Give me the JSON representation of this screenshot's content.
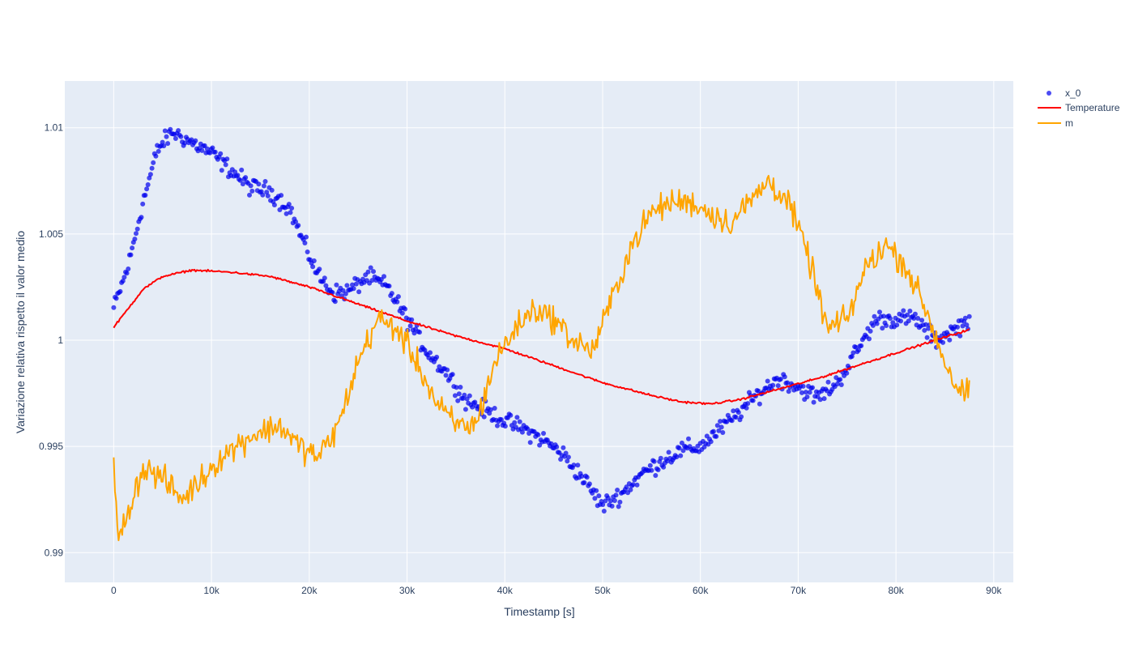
{
  "chart_data": {
    "type": "scatter",
    "title": "",
    "xlabel": "Timestamp [s]",
    "ylabel": "Variazione relativa rispetto il valor medio",
    "xlim": [
      -5000,
      92000
    ],
    "ylim": [
      0.9886,
      1.0122
    ],
    "x_ticks": [
      0,
      10000,
      20000,
      30000,
      40000,
      50000,
      60000,
      70000,
      80000,
      90000
    ],
    "x_tick_labels": [
      "0",
      "10k",
      "20k",
      "30k",
      "40k",
      "50k",
      "60k",
      "70k",
      "80k",
      "90k"
    ],
    "y_ticks": [
      0.99,
      0.995,
      1.0,
      1.005,
      1.01
    ],
    "y_tick_labels": [
      "0.99",
      "0.995",
      "1",
      "1.005",
      "1.01"
    ],
    "legend_position": "top-right",
    "x_range": [
      0,
      87500
    ],
    "series": [
      {
        "name": "x_0",
        "mode": "markers",
        "color": "#0000ee",
        "points_count": 650,
        "noise": 0.0007,
        "anchors": [
          [
            0,
            1.0015
          ],
          [
            1500,
            1.0035
          ],
          [
            3000,
            1.0065
          ],
          [
            4500,
            1.009
          ],
          [
            6000,
            1.0098
          ],
          [
            8000,
            1.0093
          ],
          [
            10000,
            1.0088
          ],
          [
            12000,
            1.008
          ],
          [
            14000,
            1.0072
          ],
          [
            16000,
            1.007
          ],
          [
            18000,
            1.0062
          ],
          [
            19500,
            1.0045
          ],
          [
            21000,
            1.003
          ],
          [
            22500,
            1.0022
          ],
          [
            24000,
            1.0023
          ],
          [
            26000,
            1.003
          ],
          [
            28000,
            1.0025
          ],
          [
            30000,
            1.001
          ],
          [
            32000,
            0.9995
          ],
          [
            34000,
            0.9985
          ],
          [
            36000,
            0.9972
          ],
          [
            38000,
            0.9967
          ],
          [
            40000,
            0.9962
          ],
          [
            42000,
            0.9958
          ],
          [
            44000,
            0.9953
          ],
          [
            46000,
            0.9946
          ],
          [
            48000,
            0.9935
          ],
          [
            50000,
            0.9922
          ],
          [
            52000,
            0.9928
          ],
          [
            54000,
            0.9937
          ],
          [
            56000,
            0.9943
          ],
          [
            58000,
            0.9948
          ],
          [
            60000,
            0.995
          ],
          [
            62000,
            0.9958
          ],
          [
            64000,
            0.9966
          ],
          [
            66000,
            0.9975
          ],
          [
            68000,
            0.9982
          ],
          [
            70000,
            0.9978
          ],
          [
            72000,
            0.9973
          ],
          [
            74000,
            0.998
          ],
          [
            76000,
            0.9995
          ],
          [
            78000,
            1.001
          ],
          [
            80000,
            1.001
          ],
          [
            82000,
            1.001
          ],
          [
            84000,
            1.0
          ],
          [
            86000,
            1.0005
          ],
          [
            87500,
            1.001
          ]
        ]
      },
      {
        "name": "Temperature",
        "mode": "lines",
        "color": "#ff0000",
        "points_count": 700,
        "noise": 8e-05,
        "anchors": [
          [
            0,
            1.0006
          ],
          [
            1500,
            1.0015
          ],
          [
            3000,
            1.0024
          ],
          [
            5000,
            1.003
          ],
          [
            8000,
            1.0033
          ],
          [
            12000,
            1.0032
          ],
          [
            16000,
            1.003
          ],
          [
            20000,
            1.0025
          ],
          [
            25000,
            1.0017
          ],
          [
            30000,
            1.0009
          ],
          [
            35000,
            1.0002
          ],
          [
            40000,
            0.9996
          ],
          [
            45000,
            0.9988
          ],
          [
            50000,
            0.998
          ],
          [
            55000,
            0.9974
          ],
          [
            58000,
            0.9971
          ],
          [
            61000,
            0.997
          ],
          [
            64000,
            0.9972
          ],
          [
            68000,
            0.9977
          ],
          [
            72000,
            0.9982
          ],
          [
            76000,
            0.9988
          ],
          [
            80000,
            0.9994
          ],
          [
            84000,
            1.0
          ],
          [
            87500,
            1.0005
          ]
        ]
      },
      {
        "name": "m",
        "mode": "lines",
        "color": "#ffa500",
        "points_count": 700,
        "noise": 0.0011,
        "anchors": [
          [
            0,
            0.994
          ],
          [
            500,
            0.9905
          ],
          [
            1500,
            0.992
          ],
          [
            3000,
            0.994
          ],
          [
            5000,
            0.9935
          ],
          [
            7000,
            0.9925
          ],
          [
            9000,
            0.9935
          ],
          [
            11000,
            0.9945
          ],
          [
            14000,
            0.9955
          ],
          [
            17000,
            0.996
          ],
          [
            19000,
            0.995
          ],
          [
            21000,
            0.9945
          ],
          [
            23000,
            0.996
          ],
          [
            25000,
            0.999
          ],
          [
            27000,
            1.001
          ],
          [
            29000,
            1.0005
          ],
          [
            31000,
            0.999
          ],
          [
            33000,
            0.997
          ],
          [
            35000,
            0.996
          ],
          [
            37000,
            0.996
          ],
          [
            39000,
            0.999
          ],
          [
            41000,
            1.0005
          ],
          [
            43000,
            1.0015
          ],
          [
            45000,
            1.001
          ],
          [
            47000,
            1.0
          ],
          [
            49000,
            0.9995
          ],
          [
            51000,
            1.002
          ],
          [
            53000,
            1.0045
          ],
          [
            55000,
            1.006
          ],
          [
            57000,
            1.0065
          ],
          [
            59000,
            1.0065
          ],
          [
            61000,
            1.006
          ],
          [
            63000,
            1.0055
          ],
          [
            65000,
            1.0065
          ],
          [
            67000,
            1.0075
          ],
          [
            69000,
            1.0065
          ],
          [
            71000,
            1.004
          ],
          [
            73000,
            1.0005
          ],
          [
            75000,
            1.001
          ],
          [
            77000,
            1.0035
          ],
          [
            79000,
            1.0045
          ],
          [
            81000,
            1.0035
          ],
          [
            83000,
            1.0015
          ],
          [
            85000,
            0.999
          ],
          [
            86500,
            0.9975
          ],
          [
            87500,
            0.9975
          ]
        ]
      }
    ]
  }
}
